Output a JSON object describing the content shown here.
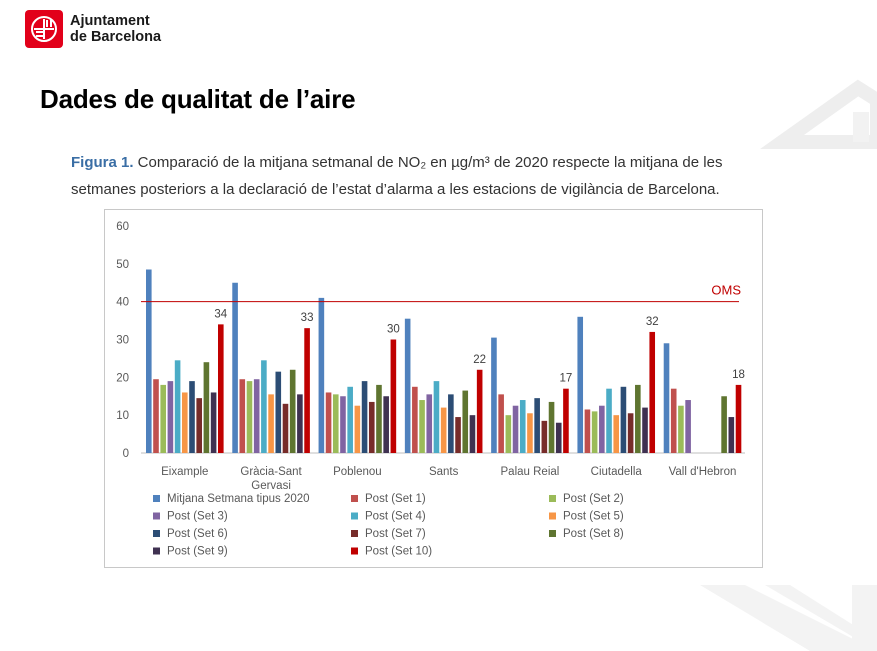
{
  "header": {
    "org_line1": "Ajuntament",
    "org_line2": "de Barcelona",
    "page_title": "Dades de qualitat de l’aire"
  },
  "caption": {
    "label": "Figura 1.",
    "text": " Comparació de la mitjana setmanal de NO₂ en µg/m³ de 2020 respecte la mitjana de les setmanes posteriors a la declaració de l’estat d’alarma a les estacions de vigilància de Barcelona."
  },
  "colors": {
    "brand_red": "#e2001a",
    "caption_accent": "#3a6ea5",
    "oms_line": "#c00000"
  },
  "chart_data": {
    "type": "bar",
    "categories": [
      "Eixample",
      "Gràcia-Sant Gervasi",
      "Poblenou",
      "Sants",
      "Palau Reial",
      "Ciutadella",
      "Vall d'Hebron"
    ],
    "category_label_lines": [
      [
        "Eixample"
      ],
      [
        "Gràcia-Sant",
        "Gervasi"
      ],
      [
        "Poblenou"
      ],
      [
        "Sants"
      ],
      [
        "Palau Reial"
      ],
      [
        "Ciutadella"
      ],
      [
        "Vall d'Hebron"
      ]
    ],
    "ylim": [
      0,
      60
    ],
    "yticks": [
      "0",
      "10",
      "20",
      "30",
      "40",
      "50",
      "60"
    ],
    "grid": false,
    "legend_position": "bottom",
    "reference_line": {
      "value": 40,
      "label": "OMS",
      "color": "#c00000"
    },
    "series": [
      {
        "name": "Mitjana Setmana tipus 2020",
        "color": "#4f81bd",
        "values": [
          48.5,
          45,
          41,
          35.5,
          30.5,
          36,
          29
        ]
      },
      {
        "name": "Post (Set 1)",
        "color": "#c0504d",
        "values": [
          19.5,
          19.5,
          16,
          17.5,
          15.5,
          11.5,
          17
        ]
      },
      {
        "name": "Post (Set 2)",
        "color": "#9bbb59",
        "values": [
          18,
          19,
          15.5,
          14,
          10,
          11,
          12.5
        ]
      },
      {
        "name": "Post (Set 3)",
        "color": "#8064a2",
        "values": [
          19,
          19.5,
          15,
          15.5,
          12.5,
          12.5,
          14
        ]
      },
      {
        "name": "Post (Set 4)",
        "color": "#4bacc6",
        "values": [
          24.5,
          24.5,
          17.5,
          19,
          14,
          17,
          null
        ]
      },
      {
        "name": "Post (Set 5)",
        "color": "#f79646",
        "values": [
          16,
          15.5,
          12.5,
          12,
          10.5,
          10,
          null
        ]
      },
      {
        "name": "Post (Set 6)",
        "color": "#2c4d75",
        "values": [
          19,
          21.5,
          19,
          15.5,
          14.5,
          17.5,
          null
        ]
      },
      {
        "name": "Post (Set 7)",
        "color": "#772c2a",
        "values": [
          14.5,
          13,
          13.5,
          9.5,
          8.5,
          10.5,
          null
        ]
      },
      {
        "name": "Post (Set 8)",
        "color": "#5f7530",
        "values": [
          24,
          22,
          18,
          16.5,
          13.5,
          18,
          15
        ]
      },
      {
        "name": "Post (Set 9)",
        "color": "#3f3151",
        "values": [
          16,
          15.5,
          15,
          10,
          8,
          12,
          9.5
        ]
      },
      {
        "name": "Post (Set 10)",
        "color": "#c00000",
        "values": [
          34,
          33,
          30,
          22,
          17,
          32,
          18
        ]
      }
    ],
    "data_labels": {
      "series": "Post (Set 10)",
      "values": [
        "34",
        "33",
        "30",
        "22",
        "17",
        "32",
        "18"
      ]
    }
  }
}
